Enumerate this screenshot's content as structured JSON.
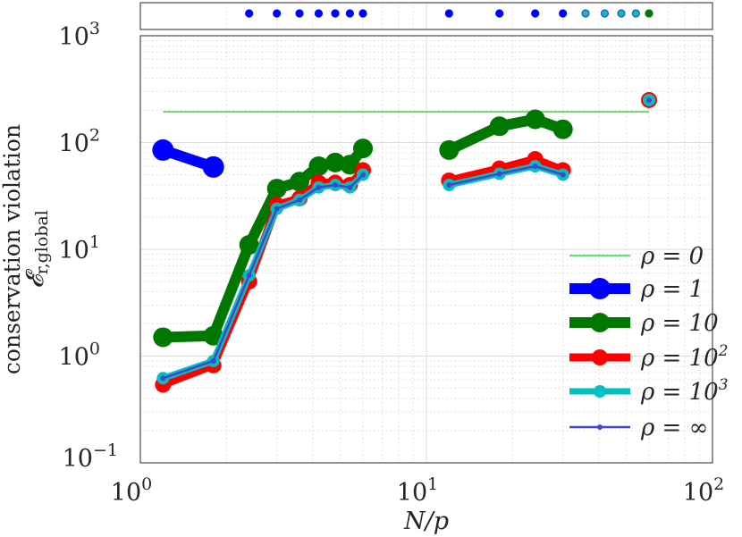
{
  "chart_data": {
    "type": "line",
    "title": "",
    "xlabel": "N/p",
    "ylabel_line1": "conservation violation",
    "ylabel_line2": "𝓔",
    "ylabel_sub": "r,global",
    "xscale": "log",
    "yscale": "log",
    "xlim": [
      1,
      100
    ],
    "ylim": [
      0.1,
      1000
    ],
    "x_ticks": [
      {
        "base": "10",
        "exp": "0"
      },
      {
        "base": "10",
        "exp": "1"
      },
      {
        "base": "10",
        "exp": "2"
      }
    ],
    "y_ticks": [
      {
        "base": "10",
        "exp": "3"
      },
      {
        "base": "10",
        "exp": "2"
      },
      {
        "base": "10",
        "exp": "1"
      },
      {
        "base": "10",
        "exp": "0"
      },
      {
        "base": "10",
        "exp": "−1"
      }
    ],
    "grid": true,
    "legend_position": "bottom-right",
    "series": [
      {
        "name": "ρ = 0",
        "label": "ρ = 0",
        "sup": "",
        "color": "#33dd33",
        "width": 1.5,
        "marker": 0,
        "x": [
          1.2,
          60
        ],
        "y": [
          194,
          194
        ]
      },
      {
        "name": "ρ = 1",
        "label": "ρ = 1",
        "sup": "",
        "color": "#0000ff",
        "width": 12,
        "marker": 12,
        "x": [
          1.2,
          1.8
        ],
        "y": [
          85,
          59
        ]
      },
      {
        "name": "ρ = 10",
        "label": "ρ = 10",
        "sup": "",
        "color": "#007700",
        "width": 12,
        "marker": 11,
        "x": [
          1.2,
          1.8,
          2.4,
          3,
          3.6,
          4.2,
          4.8,
          5.4,
          6,
          12,
          18,
          24,
          30
        ],
        "y": [
          1.5,
          1.55,
          11,
          37,
          43,
          60,
          65,
          62,
          88,
          85,
          142,
          165,
          133
        ]
      },
      {
        "name": "ρ = 10^2",
        "label": "ρ = 10",
        "sup": "2",
        "color": "#ff0000",
        "width": 9,
        "marker": 9,
        "x": [
          1.2,
          1.8,
          2.4,
          3,
          3.6,
          4.2,
          4.8,
          5.4,
          6,
          12,
          18,
          24,
          30,
          60
        ],
        "y": [
          0.54,
          0.82,
          5,
          26,
          30,
          42,
          42,
          40,
          55,
          44,
          57,
          70,
          55,
          250
        ]
      },
      {
        "name": "ρ = 10^3",
        "label": "ρ = 10",
        "sup": "3",
        "color": "#00c0c0",
        "width": 7,
        "marker": 7,
        "x": [
          1.2,
          1.8,
          2.4,
          3,
          3.6,
          4.2,
          4.8,
          5.4,
          6,
          12,
          18,
          24,
          30,
          60
        ],
        "y": [
          0.62,
          0.9,
          5.7,
          24,
          29,
          38,
          40,
          38,
          50,
          40,
          51,
          60,
          50,
          250
        ]
      },
      {
        "name": "ρ = ∞",
        "label": "ρ = ∞",
        "sup": "",
        "color": "#4444cc",
        "width": 2.5,
        "marker": 3,
        "x": [
          1.2,
          1.8,
          2.4,
          3,
          3.6,
          4.2,
          4.8,
          5.4,
          6,
          12,
          18,
          24,
          30,
          60
        ],
        "y": [
          0.62,
          0.9,
          5.7,
          24,
          29,
          38,
          40,
          38,
          50,
          40,
          51,
          60,
          50,
          250
        ]
      }
    ],
    "strip": {
      "x": [
        2.4,
        3,
        3.6,
        4.2,
        4.8,
        5.4,
        6,
        12,
        18,
        24,
        30,
        36,
        42,
        48,
        54,
        60
      ],
      "colors": [
        "#0000ff",
        "#0000ff",
        "#0000ff",
        "#0000ff",
        "#0000ff",
        "#0000ff",
        "#0000ff",
        "#0000ff",
        "#0000ff",
        "#0000ff",
        "#0000ff",
        "#00c0c0",
        "#00c0c0",
        "#00c0c0",
        "#00c0c0",
        "#007700"
      ]
    }
  }
}
